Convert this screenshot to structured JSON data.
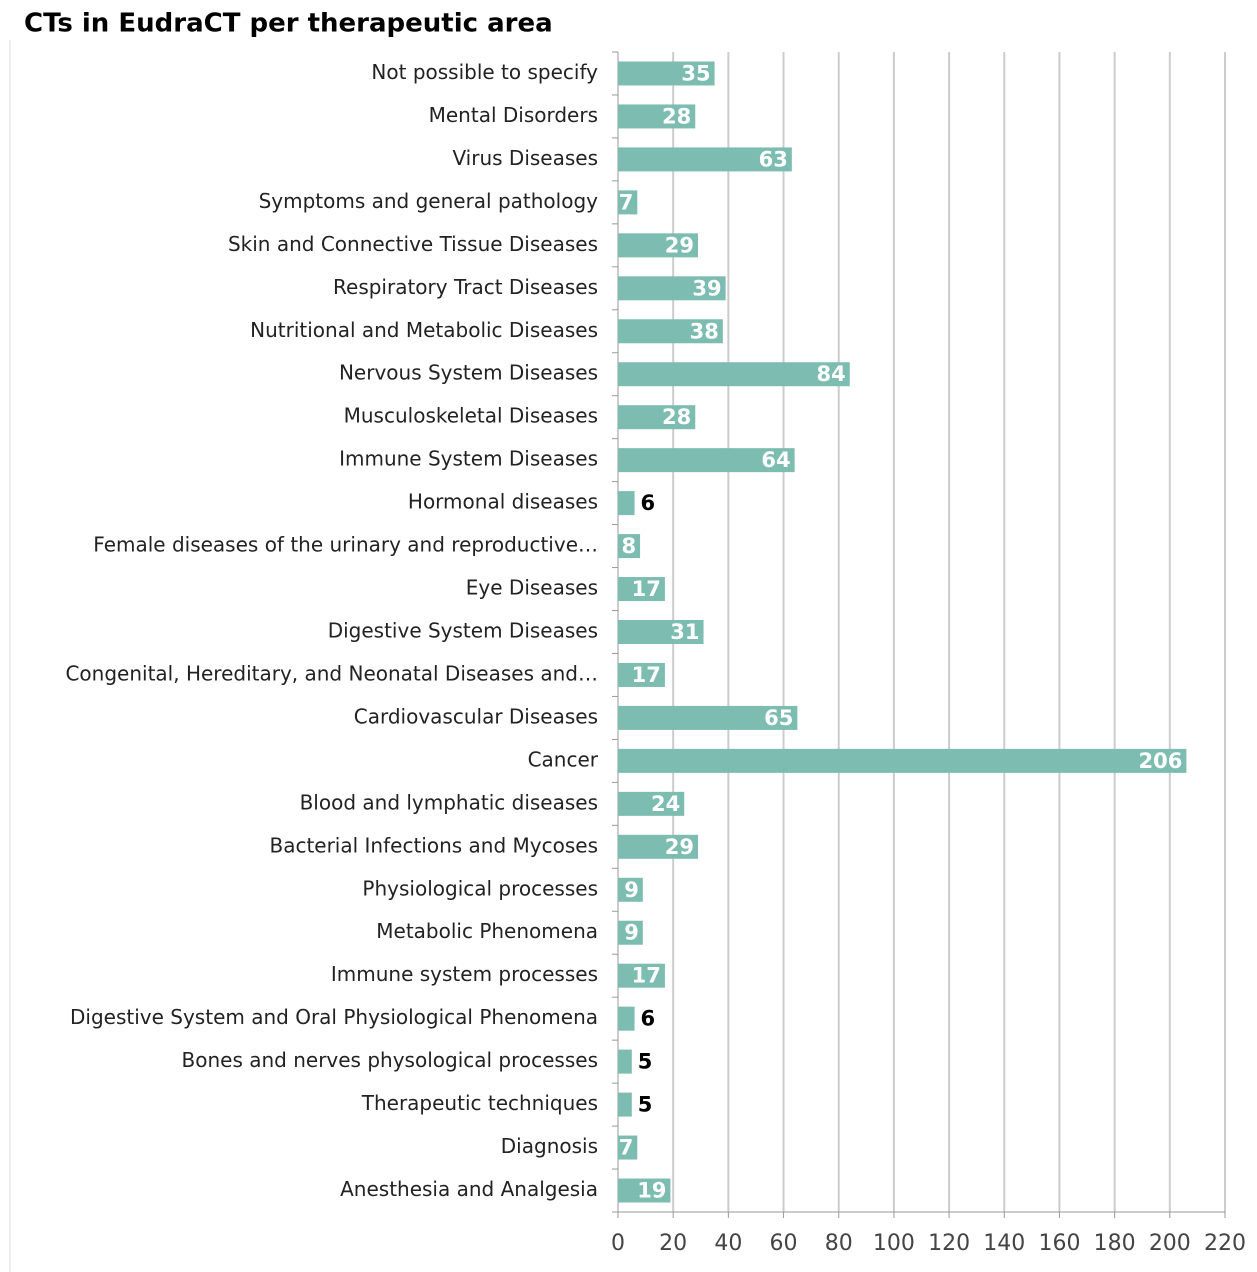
{
  "chart_data": {
    "type": "barh",
    "title": "CTs in EudraCT per therapeutic area",
    "categories": [
      "Not possible to specify",
      "Mental Disorders",
      "Virus Diseases",
      "Symptoms and general pathology",
      "Skin and Connective Tissue Diseases",
      "Respiratory Tract Diseases",
      "Nutritional and Metabolic Diseases",
      "Nervous System Diseases",
      "Musculoskeletal Diseases",
      "Immune System Diseases",
      "Hormonal diseases",
      "Female diseases of the urinary and reproductive…",
      "Eye Diseases",
      "Digestive System Diseases",
      "Congenital, Hereditary, and Neonatal Diseases and…",
      "Cardiovascular Diseases",
      "Cancer",
      "Blood and lymphatic diseases",
      "Bacterial Infections and Mycoses",
      "Physiological processes",
      "Metabolic Phenomena",
      "Immune system processes",
      "Digestive System and Oral Physiological Phenomena",
      "Bones and nerves physological processes",
      "Therapeutic techniques",
      "Diagnosis",
      "Anesthesia and Analgesia"
    ],
    "values": [
      35,
      28,
      63,
      7,
      29,
      39,
      38,
      84,
      28,
      64,
      6,
      8,
      17,
      31,
      17,
      65,
      206,
      24,
      29,
      9,
      9,
      17,
      6,
      5,
      5,
      7,
      19
    ],
    "color": "#7dbdb1",
    "xlim": [
      0,
      220
    ],
    "xticks": [
      0,
      20,
      40,
      60,
      80,
      100,
      120,
      140,
      160,
      180,
      200,
      220
    ],
    "grid": true
  }
}
